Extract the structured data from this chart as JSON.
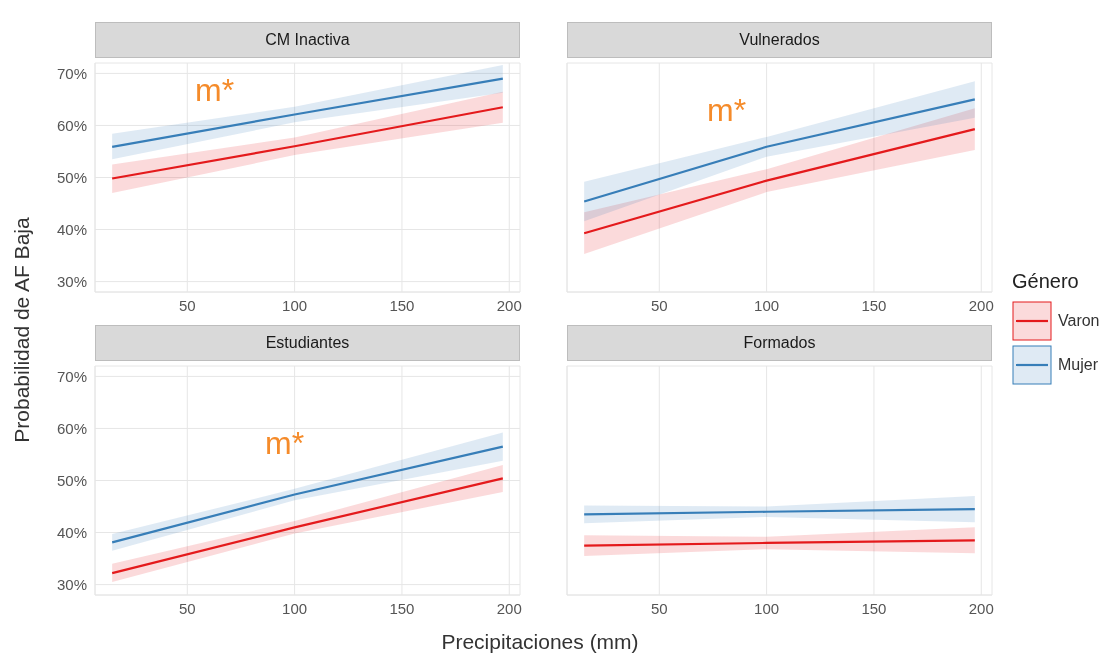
{
  "chart_data": [
    {
      "type": "line",
      "title": "CM Inactiva",
      "xlabel": "Precipitaciones (mm)",
      "ylabel": "Probabilidad de AF Baja",
      "legend_title": "Género",
      "legend": "right",
      "grid": true,
      "xlim": [
        7,
        205
      ],
      "xticks": [
        50,
        100,
        150,
        200
      ],
      "ylim": [
        28,
        72
      ],
      "yticks": [
        {
          "value": 30,
          "label": "30%"
        },
        {
          "value": 40,
          "label": "40%"
        },
        {
          "value": 50,
          "label": "50%"
        },
        {
          "value": 60,
          "label": "60%"
        },
        {
          "value": 70,
          "label": "70%"
        }
      ],
      "annotations": [
        "m*"
      ],
      "series": [
        {
          "name": "Varon",
          "color": "#e41a1c",
          "x": [
            15,
            100,
            197
          ],
          "values": [
            49.8,
            56,
            63.5
          ],
          "lower": [
            47,
            54.3,
            60.5
          ],
          "upper": [
            52.5,
            57.7,
            66.5
          ]
        },
        {
          "name": "Mujer",
          "color": "#377eb8",
          "x": [
            15,
            100,
            197
          ],
          "values": [
            55.9,
            62.1,
            69
          ],
          "lower": [
            53.5,
            60.6,
            66.3
          ],
          "upper": [
            58.4,
            63.6,
            71.6
          ]
        }
      ]
    },
    {
      "type": "line",
      "title": "Vulnerados",
      "grid": true,
      "tick_labels": "x",
      "xlim": [
        7,
        205
      ],
      "xticks": [
        50,
        100,
        150,
        200
      ],
      "ylim": [
        28,
        72
      ],
      "yticks": [
        {
          "value": 30,
          "label": null
        },
        {
          "value": 40,
          "label": null
        },
        {
          "value": 50,
          "label": null
        },
        {
          "value": 60,
          "label": null
        },
        {
          "value": 70,
          "label": null
        }
      ],
      "annotations": [
        "m*"
      ],
      "series": [
        {
          "color": "#e41a1c",
          "x": [
            15,
            100,
            197
          ],
          "values": [
            39.3,
            49.4,
            59.3
          ],
          "lower": [
            35.3,
            47.2,
            55.3
          ],
          "upper": [
            43.3,
            51.6,
            63.3
          ]
        },
        {
          "color": "#377eb8",
          "x": [
            15,
            100,
            197
          ],
          "values": [
            45.4,
            55.9,
            65
          ],
          "lower": [
            41.6,
            54,
            61.5
          ],
          "upper": [
            49.2,
            57.8,
            68.5
          ]
        }
      ]
    },
    {
      "type": "line",
      "title": "Estudiantes",
      "grid": true,
      "xlim": [
        7,
        205
      ],
      "xticks": [
        50,
        100,
        150,
        200
      ],
      "ylim": [
        28,
        72
      ],
      "yticks": [
        {
          "value": 30,
          "label": "30%"
        },
        {
          "value": 40,
          "label": "40%"
        },
        {
          "value": 50,
          "label": "50%"
        },
        {
          "value": 60,
          "label": "60%"
        },
        {
          "value": 70,
          "label": "70%"
        }
      ],
      "annotations": [
        "m*"
      ],
      "series": [
        {
          "color": "#e41a1c",
          "x": [
            15,
            100,
            197
          ],
          "values": [
            32.2,
            41,
            50.4
          ],
          "lower": [
            30.5,
            39.8,
            47.8
          ],
          "upper": [
            34,
            42.2,
            53
          ]
        },
        {
          "color": "#377eb8",
          "x": [
            15,
            100,
            197
          ],
          "values": [
            38.1,
            47.3,
            56.5
          ],
          "lower": [
            36.5,
            46.2,
            53.8
          ],
          "upper": [
            39.7,
            48.4,
            59.2
          ]
        }
      ]
    },
    {
      "type": "line",
      "title": "Formados",
      "grid": true,
      "tick_labels": "x",
      "xlim": [
        7,
        205
      ],
      "xticks": [
        50,
        100,
        150,
        200
      ],
      "ylim": [
        28,
        72
      ],
      "yticks": [
        {
          "value": 30,
          "label": null
        },
        {
          "value": 40,
          "label": null
        },
        {
          "value": 50,
          "label": null
        },
        {
          "value": 60,
          "label": null
        },
        {
          "value": 70,
          "label": null
        }
      ],
      "series": [
        {
          "color": "#e41a1c",
          "x": [
            15,
            100,
            197
          ],
          "values": [
            37.5,
            38,
            38.5
          ],
          "lower": [
            35.5,
            36.8,
            36
          ],
          "upper": [
            39.5,
            39.2,
            41
          ]
        },
        {
          "color": "#377eb8",
          "x": [
            15,
            100,
            197
          ],
          "values": [
            43.5,
            44,
            44.5
          ],
          "lower": [
            41.8,
            43,
            42
          ],
          "upper": [
            45.2,
            45,
            47
          ]
        }
      ]
    }
  ]
}
